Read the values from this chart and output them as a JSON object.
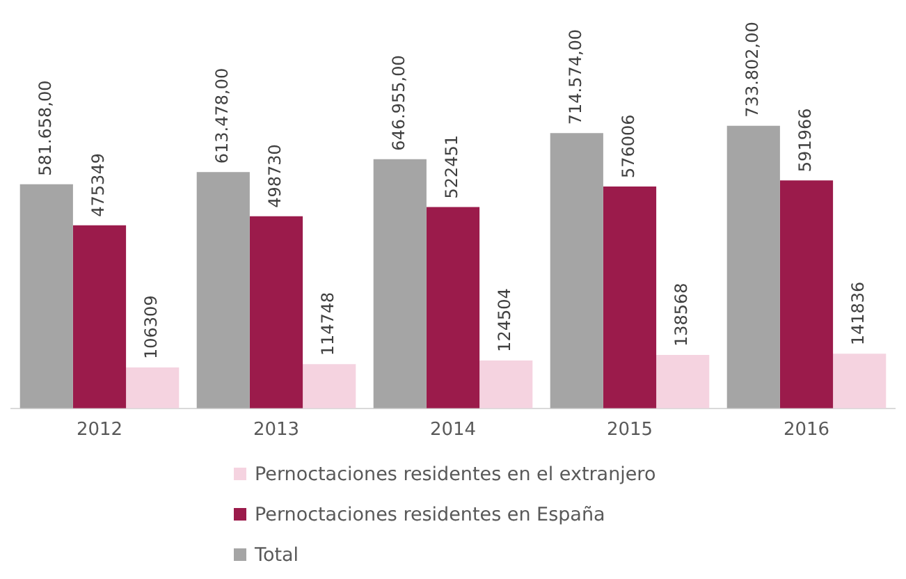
{
  "chart_data": {
    "type": "bar",
    "categories": [
      "2012",
      "2013",
      "2014",
      "2015",
      "2016"
    ],
    "series": [
      {
        "name": "Total",
        "color": "#a5a5a5",
        "values": [
          581658,
          613478,
          646955,
          714574,
          733802
        ],
        "value_labels": [
          "581.658,00",
          "613.478,00",
          "646.955,00",
          "714.574,00",
          "733.802,00"
        ]
      },
      {
        "name": "Pernoctaciones residentes en España",
        "color": "#9b1b4b",
        "values": [
          475349,
          498730,
          522451,
          576006,
          591966
        ]
      },
      {
        "name": "Pernoctaciones residentes en el extranjero",
        "color": "#f5d3e0",
        "values": [
          106309,
          114748,
          124504,
          138568,
          141836
        ]
      }
    ],
    "tick_labels": "x",
    "data_labels": true,
    "grid": false,
    "legend": "bottom"
  }
}
